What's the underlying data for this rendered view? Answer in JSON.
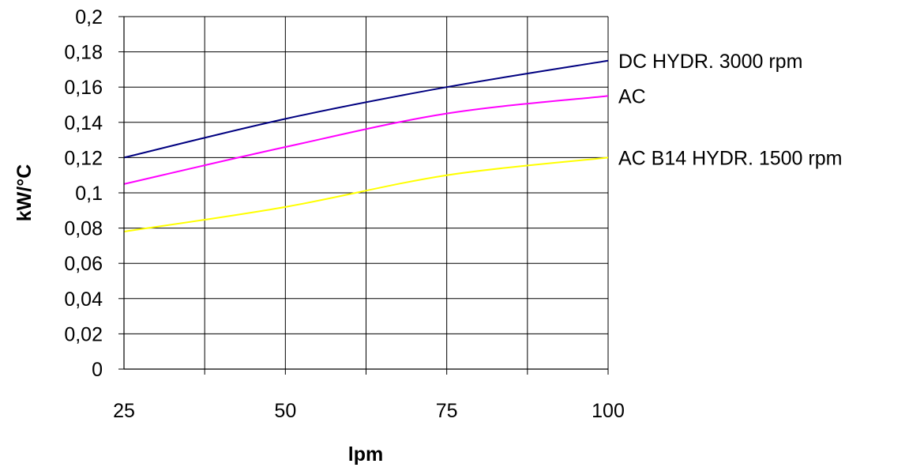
{
  "chart_data": {
    "type": "line",
    "xlabel": "lpm",
    "ylabel": "kW/°C",
    "xlim": [
      25,
      100
    ],
    "ylim": [
      0,
      0.2
    ],
    "x_ticks": [
      "25",
      "50",
      "75",
      "100"
    ],
    "y_ticks": [
      "0",
      "0,02",
      "0,04",
      "0,06",
      "0,08",
      "0,1",
      "0,12",
      "0,14",
      "0,16",
      "0,18",
      "0,2"
    ],
    "grid": true,
    "legend": "right, labels at line ends",
    "series": [
      {
        "name": "DC HYDR. 3000 rpm",
        "color": "#000080",
        "x": [
          25,
          50,
          75,
          100
        ],
        "y": [
          0.12,
          0.142,
          0.16,
          0.175
        ]
      },
      {
        "name": "AC",
        "color": "#ff00ff",
        "x": [
          25,
          50,
          75,
          100
        ],
        "y": [
          0.105,
          0.126,
          0.145,
          0.155
        ]
      },
      {
        "name": "AC B14 HYDR. 1500 rpm",
        "color": "#ffff00",
        "x": [
          25,
          50,
          75,
          100
        ],
        "y": [
          0.078,
          0.092,
          0.11,
          0.12
        ]
      }
    ]
  }
}
